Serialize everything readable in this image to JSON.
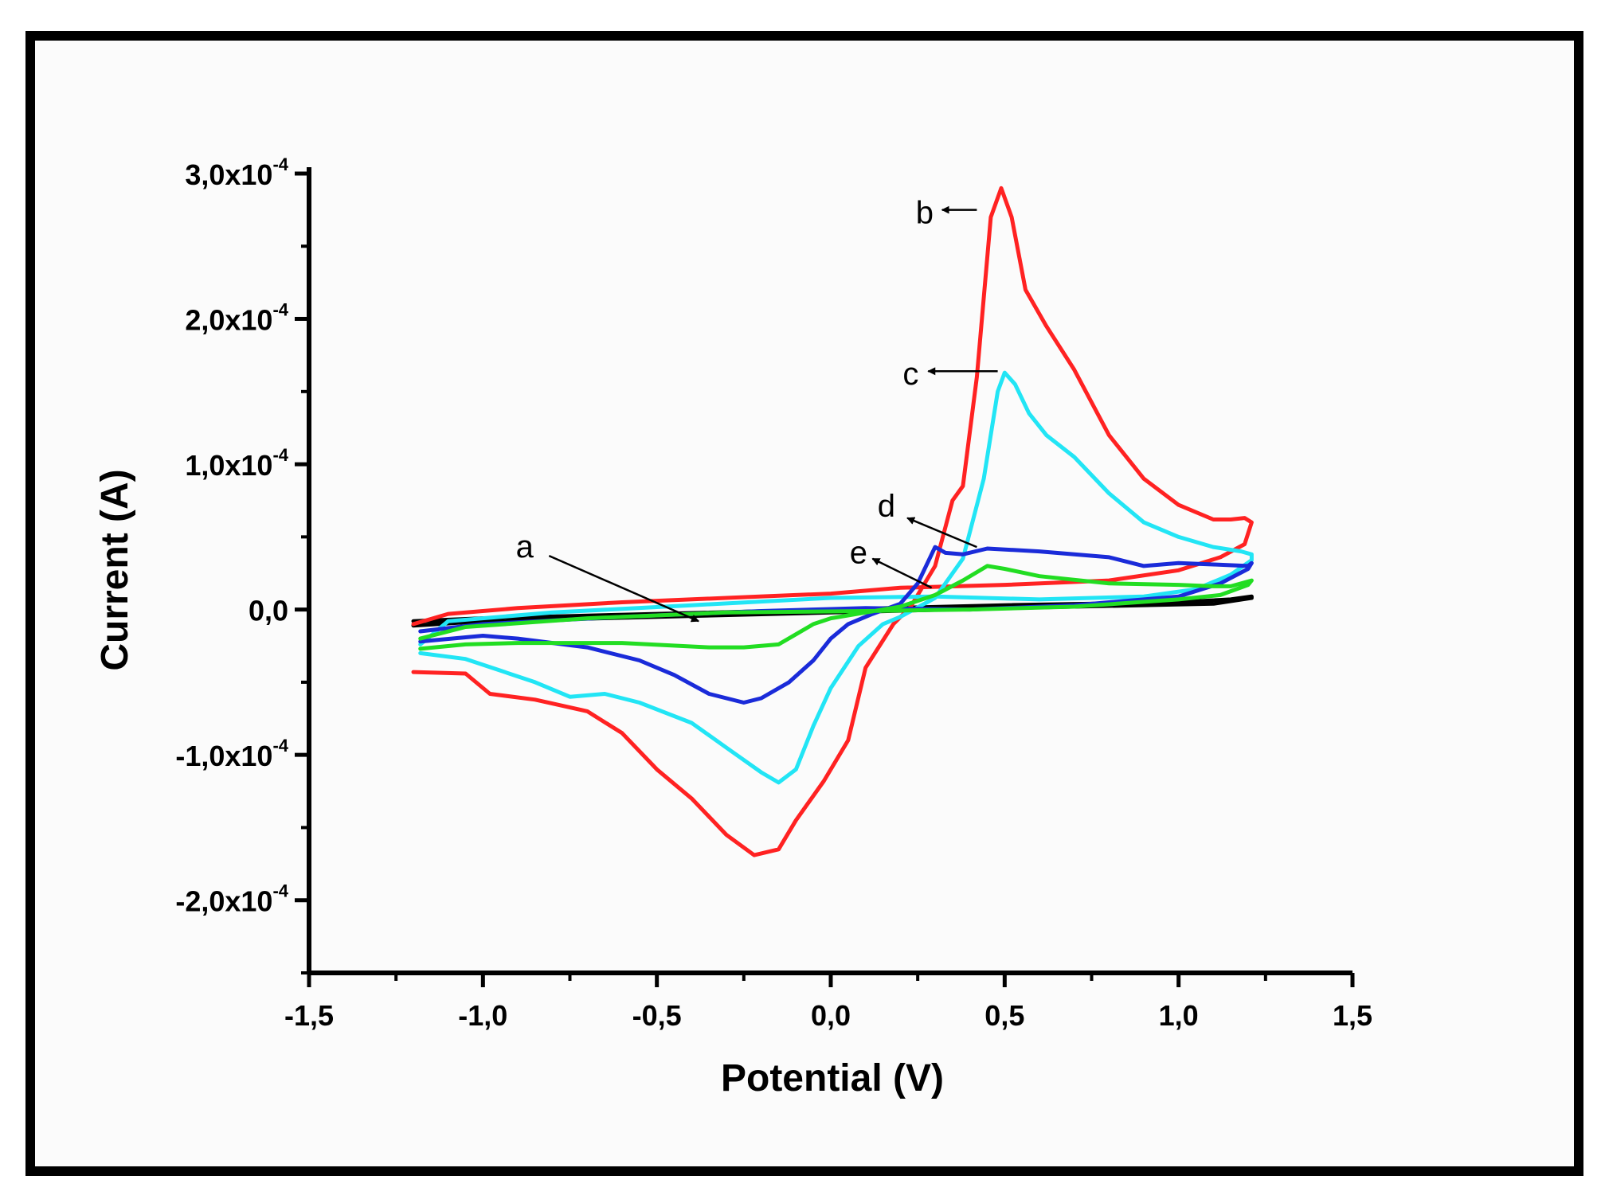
{
  "chart_data": {
    "type": "line",
    "title": "",
    "xlabel": "Potential (V)",
    "ylabel": "Current (A)",
    "xlim": [
      -1.5,
      1.5
    ],
    "ylim": [
      -0.00025,
      0.0003
    ],
    "grid": false,
    "x_ticks": [
      {
        "value": -1.5,
        "label": "-1,5"
      },
      {
        "value": -1.0,
        "label": "-1,0"
      },
      {
        "value": -0.5,
        "label": "-0,5"
      },
      {
        "value": 0.0,
        "label": "0,0"
      },
      {
        "value": 0.5,
        "label": "0,5"
      },
      {
        "value": 1.0,
        "label": "1,0"
      },
      {
        "value": 1.5,
        "label": "1,5"
      }
    ],
    "y_ticks": [
      {
        "value": 0.0003,
        "mant": "3,0x10",
        "exp": "-4"
      },
      {
        "value": 0.0002,
        "mant": "2,0x10",
        "exp": "-4"
      },
      {
        "value": 0.0001,
        "mant": "1,0x10",
        "exp": "-4"
      },
      {
        "value": 0.0,
        "mant": "0,0",
        "exp": ""
      },
      {
        "value": -0.0001,
        "mant": "-1,0x10",
        "exp": "-4"
      },
      {
        "value": -0.0002,
        "mant": "-2,0x10",
        "exp": "-4"
      }
    ],
    "series": [
      {
        "name": "a",
        "color": "#000000",
        "points": [
          [
            -1.2,
            -8e-06
          ],
          [
            -1.0,
            -6e-06
          ],
          [
            -0.5,
            -3e-06
          ],
          [
            0.0,
            0
          ],
          [
            0.5,
            3e-06
          ],
          [
            1.0,
            5e-06
          ],
          [
            1.15,
            7e-06
          ],
          [
            1.21,
            9e-06
          ],
          [
            1.21,
            8e-06
          ],
          [
            1.1,
            4e-06
          ],
          [
            0.5,
            1e-06
          ],
          [
            0.0,
            -2e-06
          ],
          [
            -0.5,
            -5e-06
          ],
          [
            -1.0,
            -8e-06
          ],
          [
            -1.2,
            -1.1e-05
          ]
        ]
      },
      {
        "name": "b",
        "color": "#ff2222",
        "points": [
          [
            -1.2,
            -4.3e-05
          ],
          [
            -1.05,
            -4.4e-05
          ],
          [
            -0.98,
            -5.8e-05
          ],
          [
            -0.85,
            -6.2e-05
          ],
          [
            -0.7,
            -7e-05
          ],
          [
            -0.6,
            -8.5e-05
          ],
          [
            -0.5,
            -0.00011
          ],
          [
            -0.4,
            -0.00013
          ],
          [
            -0.3,
            -0.000155
          ],
          [
            -0.22,
            -0.000169
          ],
          [
            -0.15,
            -0.000165
          ],
          [
            -0.1,
            -0.000145
          ],
          [
            -0.02,
            -0.000118
          ],
          [
            0.05,
            -9e-05
          ],
          [
            0.1,
            -4e-05
          ],
          [
            0.18,
            -1e-05
          ],
          [
            0.23,
            2e-06
          ],
          [
            0.3,
            3e-05
          ],
          [
            0.35,
            7.5e-05
          ],
          [
            0.38,
            8.5e-05
          ],
          [
            0.42,
            0.00016
          ],
          [
            0.46,
            0.00027
          ],
          [
            0.49,
            0.00029
          ],
          [
            0.52,
            0.00027
          ],
          [
            0.56,
            0.00022
          ],
          [
            0.62,
            0.000195
          ],
          [
            0.7,
            0.000165
          ],
          [
            0.8,
            0.00012
          ],
          [
            0.9,
            9e-05
          ],
          [
            1.0,
            7.2e-05
          ],
          [
            1.1,
            6.2e-05
          ],
          [
            1.15,
            6.2e-05
          ],
          [
            1.19,
            6.3e-05
          ],
          [
            1.21,
            6e-05
          ],
          [
            1.19,
            4.5e-05
          ],
          [
            1.12,
            3.6e-05
          ],
          [
            1.0,
            2.7e-05
          ],
          [
            0.8,
            2e-05
          ],
          [
            0.5,
            1.7e-05
          ],
          [
            0.2,
            1.5e-05
          ],
          [
            0.0,
            1.1e-05
          ],
          [
            -0.3,
            8e-06
          ],
          [
            -0.6,
            5e-06
          ],
          [
            -0.9,
            1e-06
          ],
          [
            -1.1,
            -3e-06
          ],
          [
            -1.2,
            -1e-05
          ]
        ]
      },
      {
        "name": "c",
        "color": "#22e5f5",
        "points": [
          [
            -1.18,
            -3e-05
          ],
          [
            -1.05,
            -3.4e-05
          ],
          [
            -0.95,
            -4.2e-05
          ],
          [
            -0.85,
            -5e-05
          ],
          [
            -0.75,
            -6e-05
          ],
          [
            -0.65,
            -5.8e-05
          ],
          [
            -0.55,
            -6.4e-05
          ],
          [
            -0.4,
            -7.8e-05
          ],
          [
            -0.3,
            -9.5e-05
          ],
          [
            -0.2,
            -0.000112
          ],
          [
            -0.15,
            -0.000119
          ],
          [
            -0.1,
            -0.00011
          ],
          [
            -0.05,
            -8e-05
          ],
          [
            0.0,
            -5.4e-05
          ],
          [
            0.08,
            -2.5e-05
          ],
          [
            0.15,
            -1e-05
          ],
          [
            0.2,
            -5e-06
          ],
          [
            0.3,
            8e-06
          ],
          [
            0.38,
            3.5e-05
          ],
          [
            0.44,
            9e-05
          ],
          [
            0.48,
            0.00015
          ],
          [
            0.5,
            0.000163
          ],
          [
            0.53,
            0.000155
          ],
          [
            0.57,
            0.000135
          ],
          [
            0.62,
            0.00012
          ],
          [
            0.7,
            0.000105
          ],
          [
            0.8,
            8e-05
          ],
          [
            0.9,
            6e-05
          ],
          [
            1.0,
            5e-05
          ],
          [
            1.1,
            4.3e-05
          ],
          [
            1.18,
            4e-05
          ],
          [
            1.21,
            3.8e-05
          ],
          [
            1.21,
            3.4e-05
          ],
          [
            1.15,
            2.4e-05
          ],
          [
            1.05,
            1.4e-05
          ],
          [
            0.9,
            9e-06
          ],
          [
            0.6,
            7e-06
          ],
          [
            0.3,
            9e-06
          ],
          [
            0.0,
            8e-06
          ],
          [
            -0.4,
            3e-06
          ],
          [
            -0.8,
            -2e-06
          ],
          [
            -1.1,
            -8e-06
          ],
          [
            -1.18,
            -2.4e-05
          ]
        ]
      },
      {
        "name": "d",
        "color": "#1a2bd9",
        "points": [
          [
            -1.18,
            -2.2e-05
          ],
          [
            -1.0,
            -1.8e-05
          ],
          [
            -0.9,
            -2e-05
          ],
          [
            -0.7,
            -2.6e-05
          ],
          [
            -0.55,
            -3.5e-05
          ],
          [
            -0.45,
            -4.5e-05
          ],
          [
            -0.35,
            -5.8e-05
          ],
          [
            -0.25,
            -6.4e-05
          ],
          [
            -0.2,
            -6.1e-05
          ],
          [
            -0.12,
            -5e-05
          ],
          [
            -0.05,
            -3.5e-05
          ],
          [
            0.0,
            -2e-05
          ],
          [
            0.05,
            -1e-05
          ],
          [
            0.12,
            -3e-06
          ],
          [
            0.2,
            4e-06
          ],
          [
            0.25,
            1.8e-05
          ],
          [
            0.3,
            4.3e-05
          ],
          [
            0.33,
            3.9e-05
          ],
          [
            0.38,
            3.8e-05
          ],
          [
            0.45,
            4.2e-05
          ],
          [
            0.6,
            4e-05
          ],
          [
            0.8,
            3.6e-05
          ],
          [
            0.9,
            3e-05
          ],
          [
            1.0,
            3.2e-05
          ],
          [
            1.1,
            3.1e-05
          ],
          [
            1.2,
            3e-05
          ],
          [
            1.21,
            3.2e-05
          ],
          [
            1.2,
            2.8e-05
          ],
          [
            1.12,
            1.8e-05
          ],
          [
            1.0,
            9e-06
          ],
          [
            0.7,
            3e-06
          ],
          [
            0.4,
            0
          ],
          [
            0.1,
            1e-06
          ],
          [
            -0.2,
            -1e-06
          ],
          [
            -0.6,
            -5e-06
          ],
          [
            -1.0,
            -1e-05
          ],
          [
            -1.18,
            -1.5e-05
          ]
        ]
      },
      {
        "name": "e",
        "color": "#22dd22",
        "points": [
          [
            -1.18,
            -2.7e-05
          ],
          [
            -1.05,
            -2.4e-05
          ],
          [
            -0.9,
            -2.3e-05
          ],
          [
            -0.6,
            -2.3e-05
          ],
          [
            -0.35,
            -2.6e-05
          ],
          [
            -0.25,
            -2.6e-05
          ],
          [
            -0.15,
            -2.4e-05
          ],
          [
            -0.1,
            -1.7e-05
          ],
          [
            -0.05,
            -1e-05
          ],
          [
            0.0,
            -6e-06
          ],
          [
            0.1,
            -2e-06
          ],
          [
            0.2,
            2e-06
          ],
          [
            0.3,
            1e-05
          ],
          [
            0.38,
            2e-05
          ],
          [
            0.45,
            3e-05
          ],
          [
            0.5,
            2.8e-05
          ],
          [
            0.6,
            2.3e-05
          ],
          [
            0.8,
            1.8e-05
          ],
          [
            1.0,
            1.7e-05
          ],
          [
            1.1,
            1.6e-05
          ],
          [
            1.15,
            1.6e-05
          ],
          [
            1.21,
            2e-05
          ],
          [
            1.2,
            1.7e-05
          ],
          [
            1.12,
            1e-05
          ],
          [
            1.0,
            7e-06
          ],
          [
            0.7,
            2e-06
          ],
          [
            0.4,
            0
          ],
          [
            0.1,
            -1e-06
          ],
          [
            -0.3,
            -2e-06
          ],
          [
            -0.7,
            -6e-06
          ],
          [
            -1.05,
            -1.2e-05
          ],
          [
            -1.18,
            -2e-05
          ]
        ]
      }
    ],
    "annotations": [
      {
        "text": "a",
        "x": -0.88,
        "y": 4.3e-05,
        "arrow_from": [
          -0.81,
          3.7e-05
        ],
        "arrow_to": [
          -0.38,
          -8e-06
        ]
      },
      {
        "text": "b",
        "x": 0.27,
        "y": 0.000273,
        "arrow_from": [
          0.42,
          0.000275
        ],
        "arrow_to": [
          0.32,
          0.000275
        ]
      },
      {
        "text": "c",
        "x": 0.23,
        "y": 0.000162,
        "arrow_from": [
          0.48,
          0.000164
        ],
        "arrow_to": [
          0.28,
          0.000164
        ]
      },
      {
        "text": "d",
        "x": 0.16,
        "y": 7.1e-05,
        "arrow_from": [
          0.42,
          4.3e-05
        ],
        "arrow_to": [
          0.22,
          6.3e-05
        ]
      },
      {
        "text": "e",
        "x": 0.08,
        "y": 3.9e-05,
        "arrow_from": [
          0.29,
          1.5e-05
        ],
        "arrow_to": [
          0.12,
          3.5e-05
        ]
      }
    ]
  }
}
